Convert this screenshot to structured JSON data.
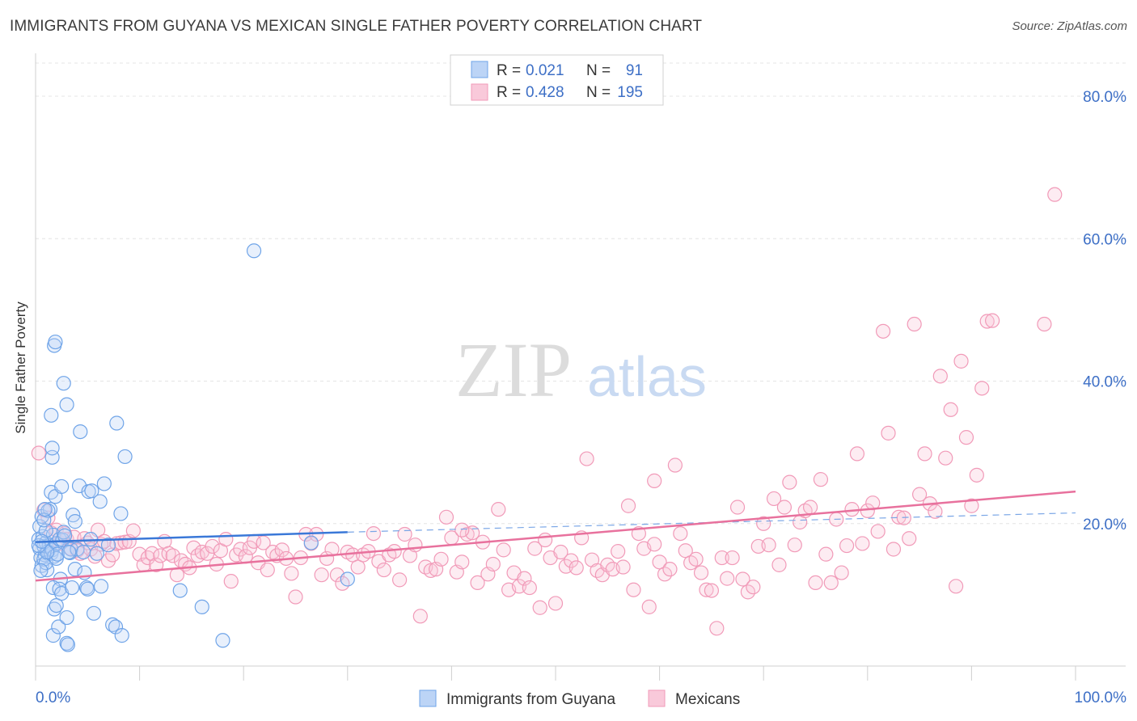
{
  "title": "IMMIGRANTS FROM GUYANA VS MEXICAN SINGLE FATHER POVERTY CORRELATION CHART",
  "source": "Source: ZipAtlas.com",
  "watermark": {
    "zip": "ZIP",
    "atlas": "atlas"
  },
  "legend": {
    "rows": [
      {
        "r_label": "R =",
        "r_value": "0.021",
        "n_label": "N =",
        "n_value": "91",
        "color": "#6fa4e8"
      },
      {
        "r_label": "R =",
        "r_value": "0.428",
        "n_label": "N =",
        "n_value": "195",
        "color": "#f19ab8"
      }
    ]
  },
  "chart_data": {
    "type": "scatter",
    "title": "IMMIGRANTS FROM GUYANA VS MEXICAN SINGLE FATHER POVERTY CORRELATION CHART",
    "xlabel": "",
    "ylabel": "Single Father Poverty",
    "xlim": [
      0,
      100
    ],
    "ylim": [
      0,
      85
    ],
    "x_tick_labels": [
      "0.0%",
      "100.0%"
    ],
    "y_ticks": [
      20,
      40,
      60,
      80
    ],
    "y_tick_labels": [
      "20.0%",
      "40.0%",
      "60.0%",
      "80.0%"
    ],
    "grid": true,
    "legend_position": "top-center",
    "series": [
      {
        "name": "Immigrants from Guyana",
        "color": "#6fa4e8",
        "trend": {
          "x": [
            0,
            30
          ],
          "y": [
            17.4,
            18.8
          ],
          "dashed_to": [
            100,
            21.5
          ]
        },
        "points": [
          [
            0.3,
            17.8
          ],
          [
            0.4,
            16.5
          ],
          [
            0.5,
            15.2
          ],
          [
            0.6,
            14.1
          ],
          [
            0.7,
            18.2
          ],
          [
            0.8,
            16.8
          ],
          [
            0.9,
            15.6
          ],
          [
            1.0,
            17.3
          ],
          [
            1.1,
            13.5
          ],
          [
            1.2,
            16.1
          ],
          [
            0.4,
            19.6
          ],
          [
            0.6,
            21.0
          ],
          [
            0.8,
            15.0
          ],
          [
            1.0,
            14.5
          ],
          [
            1.3,
            16.9
          ],
          [
            1.4,
            22.0
          ],
          [
            1.5,
            15.8
          ],
          [
            1.6,
            16.3
          ],
          [
            1.7,
            18.4
          ],
          [
            1.8,
            15.4
          ],
          [
            2.0,
            15.1
          ],
          [
            1.5,
            24.4
          ],
          [
            1.6,
            29.3
          ],
          [
            1.5,
            35.2
          ],
          [
            1.6,
            30.6
          ],
          [
            1.9,
            23.8
          ],
          [
            2.0,
            17.2
          ],
          [
            2.1,
            15.7
          ],
          [
            2.3,
            17.8
          ],
          [
            2.4,
            12.2
          ],
          [
            1.7,
            11.0
          ],
          [
            1.8,
            8.0
          ],
          [
            2.0,
            8.5
          ],
          [
            1.7,
            4.3
          ],
          [
            2.2,
            5.5
          ],
          [
            2.6,
            17.7
          ],
          [
            2.3,
            10.8
          ],
          [
            2.5,
            10.2
          ],
          [
            2.7,
            18.8
          ],
          [
            2.5,
            25.2
          ],
          [
            1.8,
            45.0
          ],
          [
            1.9,
            45.5
          ],
          [
            2.7,
            39.7
          ],
          [
            3.0,
            36.7
          ],
          [
            3.0,
            6.8
          ],
          [
            3.0,
            3.2
          ],
          [
            3.1,
            3.0
          ],
          [
            3.3,
            15.9
          ],
          [
            3.4,
            16.4
          ],
          [
            3.5,
            11.0
          ],
          [
            3.6,
            21.2
          ],
          [
            3.8,
            13.6
          ],
          [
            3.8,
            20.3
          ],
          [
            4.0,
            16.4
          ],
          [
            4.2,
            25.3
          ],
          [
            4.3,
            32.9
          ],
          [
            4.6,
            16.0
          ],
          [
            4.7,
            13.1
          ],
          [
            4.9,
            11.0
          ],
          [
            5.1,
            24.5
          ],
          [
            5.0,
            10.8
          ],
          [
            5.3,
            17.8
          ],
          [
            5.4,
            24.6
          ],
          [
            5.6,
            7.4
          ],
          [
            5.9,
            15.8
          ],
          [
            6.2,
            23.1
          ],
          [
            6.3,
            11.2
          ],
          [
            6.6,
            25.6
          ],
          [
            7.0,
            17.0
          ],
          [
            7.4,
            5.8
          ],
          [
            7.7,
            5.5
          ],
          [
            7.8,
            34.1
          ],
          [
            8.2,
            21.4
          ],
          [
            8.3,
            4.3
          ],
          [
            8.6,
            29.4
          ],
          [
            1.0,
            19.0
          ],
          [
            1.2,
            21.8
          ],
          [
            0.8,
            20.5
          ],
          [
            0.5,
            13.4
          ],
          [
            1.1,
            16.0
          ],
          [
            13.9,
            10.6
          ],
          [
            16.0,
            8.3
          ],
          [
            18.0,
            3.6
          ],
          [
            21.0,
            58.3
          ],
          [
            26.5,
            17.3
          ],
          [
            30.0,
            12.2
          ],
          [
            0.9,
            22.0
          ],
          [
            0.3,
            16.9
          ],
          [
            2.8,
            18.3
          ],
          [
            3.2,
            16.0
          ],
          [
            0.6,
            17.5
          ]
        ]
      },
      {
        "name": "Mexicans",
        "color": "#f19ab8",
        "trend": {
          "x": [
            0,
            100
          ],
          "y": [
            12.0,
            24.5
          ]
        },
        "points": [
          [
            0.3,
            29.9
          ],
          [
            0.8,
            21.9
          ],
          [
            1.2,
            20.8
          ],
          [
            1.5,
            18.7
          ],
          [
            2.0,
            19.1
          ],
          [
            2.4,
            17.2
          ],
          [
            2.8,
            18.6
          ],
          [
            3.0,
            17.8
          ],
          [
            3.4,
            16.5
          ],
          [
            3.7,
            18.1
          ],
          [
            4.0,
            16.2
          ],
          [
            4.3,
            15.8
          ],
          [
            4.7,
            17.9
          ],
          [
            5.0,
            17.3
          ],
          [
            5.3,
            16.4
          ],
          [
            5.7,
            15.4
          ],
          [
            6.0,
            19.1
          ],
          [
            6.3,
            17.1
          ],
          [
            6.6,
            17.5
          ],
          [
            7.0,
            14.8
          ],
          [
            7.4,
            15.6
          ],
          [
            7.8,
            17.2
          ],
          [
            8.2,
            17.3
          ],
          [
            8.6,
            17.4
          ],
          [
            9.0,
            17.5
          ],
          [
            9.4,
            19.0
          ],
          [
            10.0,
            15.7
          ],
          [
            10.4,
            14.2
          ],
          [
            10.8,
            15.2
          ],
          [
            11.2,
            15.8
          ],
          [
            11.6,
            14.2
          ],
          [
            12.0,
            15.5
          ],
          [
            12.4,
            17.5
          ],
          [
            12.8,
            15.8
          ],
          [
            13.2,
            15.5
          ],
          [
            13.6,
            12.8
          ],
          [
            14.0,
            14.8
          ],
          [
            14.4,
            14.3
          ],
          [
            14.8,
            13.8
          ],
          [
            15.2,
            16.6
          ],
          [
            15.6,
            15.5
          ],
          [
            16.0,
            16.0
          ],
          [
            16.5,
            15.8
          ],
          [
            17.0,
            16.8
          ],
          [
            17.4,
            14.3
          ],
          [
            17.8,
            16.2
          ],
          [
            18.3,
            17.8
          ],
          [
            18.8,
            11.9
          ],
          [
            19.3,
            15.6
          ],
          [
            19.7,
            16.4
          ],
          [
            20.2,
            15.4
          ],
          [
            20.6,
            16.6
          ],
          [
            21.0,
            17.5
          ],
          [
            21.4,
            14.5
          ],
          [
            21.9,
            17.3
          ],
          [
            22.3,
            13.5
          ],
          [
            22.8,
            16.0
          ],
          [
            23.2,
            15.5
          ],
          [
            23.7,
            16.3
          ],
          [
            24.1,
            15.1
          ],
          [
            24.6,
            13.0
          ],
          [
            25.0,
            9.7
          ],
          [
            25.5,
            15.2
          ],
          [
            26.0,
            18.5
          ],
          [
            26.5,
            17.2
          ],
          [
            27.0,
            18.5
          ],
          [
            27.5,
            12.8
          ],
          [
            28.0,
            15.1
          ],
          [
            28.5,
            16.4
          ],
          [
            29.0,
            12.8
          ],
          [
            29.5,
            11.6
          ],
          [
            30.0,
            16.0
          ],
          [
            30.5,
            15.6
          ],
          [
            31.0,
            13.9
          ],
          [
            31.5,
            15.6
          ],
          [
            32.0,
            16.1
          ],
          [
            32.5,
            18.6
          ],
          [
            33.0,
            14.7
          ],
          [
            33.5,
            13.5
          ],
          [
            34.0,
            15.6
          ],
          [
            34.5,
            16.1
          ],
          [
            35.0,
            12.1
          ],
          [
            35.5,
            18.5
          ],
          [
            36.0,
            15.5
          ],
          [
            36.5,
            17.0
          ],
          [
            37.0,
            7.0
          ],
          [
            37.5,
            13.9
          ],
          [
            38.0,
            13.4
          ],
          [
            38.5,
            13.6
          ],
          [
            39.0,
            15.0
          ],
          [
            39.5,
            20.9
          ],
          [
            40.0,
            18.0
          ],
          [
            40.5,
            13.2
          ],
          [
            41.0,
            14.6
          ],
          [
            41.5,
            18.5
          ],
          [
            42.0,
            18.7
          ],
          [
            42.5,
            11.7
          ],
          [
            43.0,
            17.4
          ],
          [
            43.5,
            12.9
          ],
          [
            44.0,
            14.3
          ],
          [
            44.5,
            22.0
          ],
          [
            45.0,
            16.3
          ],
          [
            45.5,
            10.7
          ],
          [
            46.0,
            13.1
          ],
          [
            46.5,
            11.2
          ],
          [
            47.0,
            12.3
          ],
          [
            47.5,
            11.0
          ],
          [
            48.0,
            16.5
          ],
          [
            48.5,
            8.2
          ],
          [
            49.0,
            17.7
          ],
          [
            49.5,
            15.2
          ],
          [
            50.0,
            8.8
          ],
          [
            50.5,
            16.0
          ],
          [
            51.0,
            14.0
          ],
          [
            51.5,
            14.8
          ],
          [
            52.0,
            13.8
          ],
          [
            52.5,
            18.0
          ],
          [
            53.0,
            29.1
          ],
          [
            53.5,
            14.9
          ],
          [
            54.0,
            13.4
          ],
          [
            54.5,
            12.8
          ],
          [
            55.0,
            14.2
          ],
          [
            55.5,
            13.6
          ],
          [
            56.0,
            16.1
          ],
          [
            56.5,
            13.9
          ],
          [
            57.0,
            22.5
          ],
          [
            57.5,
            10.7
          ],
          [
            58.0,
            18.6
          ],
          [
            58.5,
            16.5
          ],
          [
            59.0,
            8.3
          ],
          [
            59.5,
            17.1
          ],
          [
            60.0,
            14.6
          ],
          [
            60.5,
            12.9
          ],
          [
            61.0,
            13.6
          ],
          [
            61.5,
            28.2
          ],
          [
            62.0,
            18.6
          ],
          [
            62.5,
            16.2
          ],
          [
            63.0,
            14.5
          ],
          [
            63.5,
            15.0
          ],
          [
            64.0,
            13.1
          ],
          [
            64.5,
            10.7
          ],
          [
            65.0,
            10.6
          ],
          [
            65.5,
            5.3
          ],
          [
            66.0,
            15.2
          ],
          [
            66.5,
            12.3
          ],
          [
            67.0,
            15.2
          ],
          [
            67.5,
            22.3
          ],
          [
            68.0,
            12.2
          ],
          [
            68.5,
            10.4
          ],
          [
            69.0,
            11.1
          ],
          [
            69.5,
            16.8
          ],
          [
            70.0,
            20.0
          ],
          [
            70.5,
            17.0
          ],
          [
            71.0,
            23.5
          ],
          [
            71.5,
            14.2
          ],
          [
            72.0,
            22.3
          ],
          [
            72.5,
            25.8
          ],
          [
            73.0,
            17.0
          ],
          [
            73.5,
            20.2
          ],
          [
            74.0,
            21.8
          ],
          [
            74.5,
            22.3
          ],
          [
            75.0,
            11.7
          ],
          [
            75.5,
            26.2
          ],
          [
            76.0,
            15.7
          ],
          [
            76.5,
            11.7
          ],
          [
            77.0,
            20.6
          ],
          [
            77.5,
            13.1
          ],
          [
            78.0,
            16.9
          ],
          [
            78.5,
            22.0
          ],
          [
            79.0,
            29.8
          ],
          [
            79.5,
            17.2
          ],
          [
            80.0,
            21.8
          ],
          [
            80.5,
            22.9
          ],
          [
            81.0,
            18.9
          ],
          [
            81.5,
            47.0
          ],
          [
            82.0,
            32.7
          ],
          [
            82.5,
            16.4
          ],
          [
            83.0,
            20.9
          ],
          [
            83.5,
            20.8
          ],
          [
            84.0,
            17.9
          ],
          [
            84.5,
            48.0
          ],
          [
            85.0,
            24.1
          ],
          [
            85.5,
            29.8
          ],
          [
            86.0,
            22.8
          ],
          [
            86.5,
            21.7
          ],
          [
            87.0,
            40.7
          ],
          [
            87.5,
            29.2
          ],
          [
            88.0,
            36.0
          ],
          [
            88.5,
            11.2
          ],
          [
            89.0,
            42.8
          ],
          [
            89.5,
            32.1
          ],
          [
            90.0,
            22.5
          ],
          [
            90.5,
            26.8
          ],
          [
            91.0,
            39.0
          ],
          [
            91.5,
            48.4
          ],
          [
            92.0,
            48.5
          ],
          [
            97.0,
            48.0
          ],
          [
            98.0,
            66.2
          ],
          [
            41.0,
            19.1
          ],
          [
            59.5,
            26.0
          ]
        ]
      }
    ]
  },
  "bottom_legend": [
    {
      "label": "Immigrants from Guyana",
      "color": "#6fa4e8"
    },
    {
      "label": "Mexicans",
      "color": "#f19ab8"
    }
  ]
}
